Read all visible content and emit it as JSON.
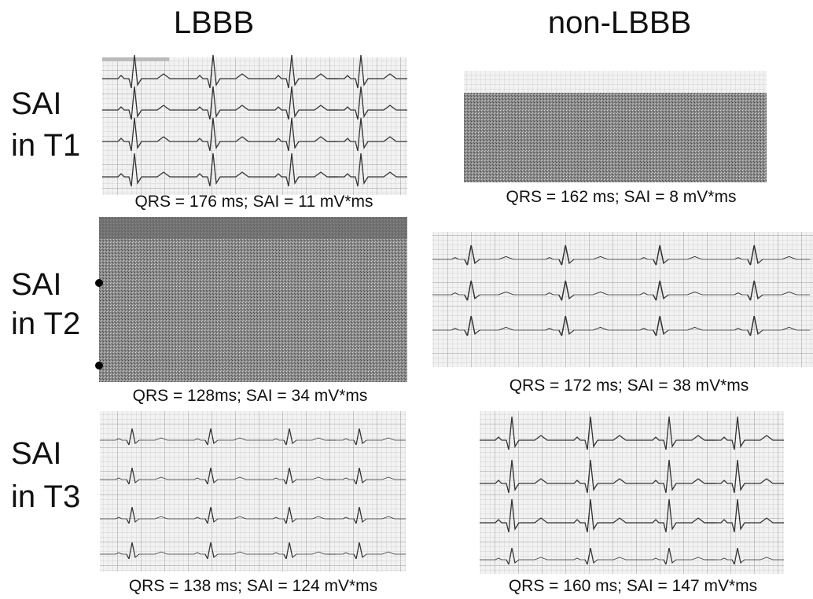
{
  "columns": [
    "LBBB",
    "non-LBBB"
  ],
  "rows": [
    [
      "SAI",
      "in T1"
    ],
    [
      "SAI",
      "in T2"
    ],
    [
      "SAI",
      "in T3"
    ]
  ],
  "panels": [
    [
      "QRS = 176 ms; SAI = 11 mV*ms",
      "QRS = 162 ms; SAI = 8 mV*ms"
    ],
    [
      "QRS = 128ms; SAI = 34 mV*ms",
      "QRS = 172 ms; SAI = 38 mV*ms"
    ],
    [
      "QRS = 138 ms; SAI = 124 mV*ms",
      "QRS = 160 ms; SAI = 147 mV*ms"
    ]
  ]
}
